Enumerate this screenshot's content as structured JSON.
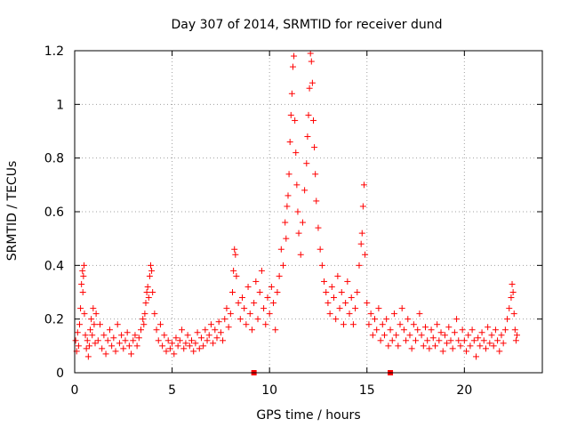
{
  "chart_data": {
    "type": "scatter",
    "title": "Day 307 of 2014, SRMTID for receiver dund",
    "xlabel": "GPS time / hours",
    "ylabel": "SRMTID / TECUs",
    "xlim": [
      0,
      24
    ],
    "ylim": [
      0,
      1.2
    ],
    "xticks": [
      0,
      5,
      10,
      15,
      20
    ],
    "xtick_labels": [
      "0",
      "5",
      "10",
      "15",
      "20"
    ],
    "yticks": [
      0,
      0.2,
      0.4,
      0.6,
      0.8,
      1,
      1.2
    ],
    "ytick_labels": [
      "0",
      "0.2",
      "0.4",
      "0.6",
      "0.8",
      "1",
      "1.2"
    ],
    "grid": true,
    "marker": "+",
    "series_color": "#ff0000",
    "series": [
      {
        "name": "SRMTID",
        "points": [
          [
            0.05,
            0.12
          ],
          [
            0.1,
            0.08
          ],
          [
            0.15,
            0.15
          ],
          [
            0.2,
            0.1
          ],
          [
            0.25,
            0.18
          ],
          [
            0.3,
            0.24
          ],
          [
            0.35,
            0.33
          ],
          [
            0.4,
            0.38
          ],
          [
            0.42,
            0.3
          ],
          [
            0.45,
            0.36
          ],
          [
            0.48,
            0.4
          ],
          [
            0.5,
            0.22
          ],
          [
            0.55,
            0.14
          ],
          [
            0.6,
            0.09
          ],
          [
            0.65,
            0.12
          ],
          [
            0.7,
            0.06
          ],
          [
            0.75,
            0.1
          ],
          [
            0.8,
            0.16
          ],
          [
            0.85,
            0.2
          ],
          [
            0.9,
            0.14
          ],
          [
            0.95,
            0.24
          ],
          [
            1.0,
            0.18
          ],
          [
            1.05,
            0.11
          ],
          [
            1.1,
            0.22
          ],
          [
            1.2,
            0.12
          ],
          [
            1.3,
            0.18
          ],
          [
            1.4,
            0.09
          ],
          [
            1.5,
            0.14
          ],
          [
            1.6,
            0.07
          ],
          [
            1.7,
            0.12
          ],
          [
            1.8,
            0.16
          ],
          [
            1.9,
            0.1
          ],
          [
            2.0,
            0.13
          ],
          [
            2.1,
            0.08
          ],
          [
            2.2,
            0.18
          ],
          [
            2.3,
            0.11
          ],
          [
            2.4,
            0.14
          ],
          [
            2.5,
            0.09
          ],
          [
            2.6,
            0.12
          ],
          [
            2.7,
            0.15
          ],
          [
            2.8,
            0.1
          ],
          [
            2.9,
            0.07
          ],
          [
            3.0,
            0.12
          ],
          [
            3.1,
            0.14
          ],
          [
            3.2,
            0.1
          ],
          [
            3.3,
            0.13
          ],
          [
            3.4,
            0.16
          ],
          [
            3.5,
            0.2
          ],
          [
            3.55,
            0.18
          ],
          [
            3.6,
            0.22
          ],
          [
            3.65,
            0.26
          ],
          [
            3.7,
            0.3
          ],
          [
            3.75,
            0.32
          ],
          [
            3.8,
            0.28
          ],
          [
            3.85,
            0.36
          ],
          [
            3.9,
            0.4
          ],
          [
            3.95,
            0.38
          ],
          [
            4.0,
            0.3
          ],
          [
            4.1,
            0.22
          ],
          [
            4.2,
            0.16
          ],
          [
            4.3,
            0.12
          ],
          [
            4.4,
            0.18
          ],
          [
            4.5,
            0.1
          ],
          [
            4.6,
            0.14
          ],
          [
            4.7,
            0.08
          ],
          [
            4.8,
            0.12
          ],
          [
            4.9,
            0.09
          ],
          [
            5.0,
            0.11
          ],
          [
            5.1,
            0.07
          ],
          [
            5.2,
            0.13
          ],
          [
            5.3,
            0.1
          ],
          [
            5.4,
            0.12
          ],
          [
            5.5,
            0.16
          ],
          [
            5.6,
            0.09
          ],
          [
            5.7,
            0.11
          ],
          [
            5.8,
            0.14
          ],
          [
            5.9,
            0.1
          ],
          [
            6.0,
            0.12
          ],
          [
            6.1,
            0.08
          ],
          [
            6.2,
            0.11
          ],
          [
            6.3,
            0.15
          ],
          [
            6.4,
            0.09
          ],
          [
            6.5,
            0.13
          ],
          [
            6.6,
            0.1
          ],
          [
            6.7,
            0.16
          ],
          [
            6.8,
            0.12
          ],
          [
            6.9,
            0.14
          ],
          [
            7.0,
            0.18
          ],
          [
            7.1,
            0.11
          ],
          [
            7.2,
            0.16
          ],
          [
            7.3,
            0.13
          ],
          [
            7.4,
            0.19
          ],
          [
            7.5,
            0.15
          ],
          [
            7.6,
            0.12
          ],
          [
            7.7,
            0.2
          ],
          [
            7.8,
            0.24
          ],
          [
            7.9,
            0.17
          ],
          [
            8.0,
            0.22
          ],
          [
            8.1,
            0.3
          ],
          [
            8.15,
            0.38
          ],
          [
            8.2,
            0.46
          ],
          [
            8.25,
            0.44
          ],
          [
            8.3,
            0.36
          ],
          [
            8.4,
            0.26
          ],
          [
            8.5,
            0.2
          ],
          [
            8.6,
            0.28
          ],
          [
            8.7,
            0.24
          ],
          [
            8.8,
            0.18
          ],
          [
            8.9,
            0.32
          ],
          [
            9.0,
            0.22
          ],
          [
            9.1,
            0.16
          ],
          [
            9.2,
            0.26
          ],
          [
            9.3,
            0.34
          ],
          [
            9.4,
            0.2
          ],
          [
            9.5,
            0.3
          ],
          [
            9.6,
            0.38
          ],
          [
            9.7,
            0.24
          ],
          [
            9.8,
            0.18
          ],
          [
            9.9,
            0.28
          ],
          [
            10.0,
            0.22
          ],
          [
            10.1,
            0.32
          ],
          [
            10.2,
            0.26
          ],
          [
            10.3,
            0.16
          ],
          [
            10.4,
            0.3
          ],
          [
            10.5,
            0.36
          ],
          [
            10.6,
            0.46
          ],
          [
            10.7,
            0.4
          ],
          [
            10.8,
            0.56
          ],
          [
            10.85,
            0.5
          ],
          [
            10.9,
            0.62
          ],
          [
            10.95,
            0.66
          ],
          [
            11.0,
            0.74
          ],
          [
            11.05,
            0.86
          ],
          [
            11.1,
            0.96
          ],
          [
            11.15,
            1.04
          ],
          [
            11.2,
            1.14
          ],
          [
            11.25,
            1.18
          ],
          [
            11.3,
            0.94
          ],
          [
            11.35,
            0.82
          ],
          [
            11.4,
            0.7
          ],
          [
            11.45,
            0.6
          ],
          [
            11.5,
            0.52
          ],
          [
            11.6,
            0.44
          ],
          [
            11.7,
            0.56
          ],
          [
            11.8,
            0.68
          ],
          [
            11.9,
            0.78
          ],
          [
            11.95,
            0.88
          ],
          [
            12.0,
            0.96
          ],
          [
            12.05,
            1.06
          ],
          [
            12.1,
            1.19
          ],
          [
            12.15,
            1.16
          ],
          [
            12.2,
            1.08
          ],
          [
            12.25,
            0.94
          ],
          [
            12.3,
            0.84
          ],
          [
            12.35,
            0.74
          ],
          [
            12.4,
            0.64
          ],
          [
            12.5,
            0.54
          ],
          [
            12.6,
            0.46
          ],
          [
            12.7,
            0.4
          ],
          [
            12.8,
            0.34
          ],
          [
            12.9,
            0.3
          ],
          [
            13.0,
            0.26
          ],
          [
            13.1,
            0.22
          ],
          [
            13.2,
            0.32
          ],
          [
            13.3,
            0.28
          ],
          [
            13.4,
            0.2
          ],
          [
            13.5,
            0.36
          ],
          [
            13.6,
            0.24
          ],
          [
            13.7,
            0.3
          ],
          [
            13.8,
            0.18
          ],
          [
            13.9,
            0.26
          ],
          [
            14.0,
            0.34
          ],
          [
            14.1,
            0.22
          ],
          [
            14.2,
            0.28
          ],
          [
            14.3,
            0.18
          ],
          [
            14.4,
            0.24
          ],
          [
            14.5,
            0.3
          ],
          [
            14.6,
            0.4
          ],
          [
            14.7,
            0.48
          ],
          [
            14.75,
            0.52
          ],
          [
            14.8,
            0.62
          ],
          [
            14.85,
            0.7
          ],
          [
            14.9,
            0.44
          ],
          [
            15.0,
            0.26
          ],
          [
            15.1,
            0.18
          ],
          [
            15.2,
            0.22
          ],
          [
            15.3,
            0.14
          ],
          [
            15.4,
            0.2
          ],
          [
            15.5,
            0.16
          ],
          [
            15.6,
            0.24
          ],
          [
            15.7,
            0.12
          ],
          [
            15.8,
            0.18
          ],
          [
            15.9,
            0.14
          ],
          [
            16.0,
            0.2
          ],
          [
            16.1,
            0.1
          ],
          [
            16.2,
            0.16
          ],
          [
            16.3,
            0.12
          ],
          [
            16.4,
            0.22
          ],
          [
            16.5,
            0.14
          ],
          [
            16.6,
            0.1
          ],
          [
            16.7,
            0.18
          ],
          [
            16.8,
            0.24
          ],
          [
            16.9,
            0.16
          ],
          [
            17.0,
            0.12
          ],
          [
            17.1,
            0.2
          ],
          [
            17.2,
            0.14
          ],
          [
            17.3,
            0.09
          ],
          [
            17.4,
            0.18
          ],
          [
            17.5,
            0.12
          ],
          [
            17.6,
            0.16
          ],
          [
            17.7,
            0.22
          ],
          [
            17.8,
            0.14
          ],
          [
            17.9,
            0.1
          ],
          [
            18.0,
            0.17
          ],
          [
            18.1,
            0.12
          ],
          [
            18.2,
            0.09
          ],
          [
            18.3,
            0.16
          ],
          [
            18.4,
            0.13
          ],
          [
            18.5,
            0.1
          ],
          [
            18.6,
            0.18
          ],
          [
            18.7,
            0.12
          ],
          [
            18.8,
            0.15
          ],
          [
            18.9,
            0.08
          ],
          [
            19.0,
            0.14
          ],
          [
            19.1,
            0.11
          ],
          [
            19.2,
            0.17
          ],
          [
            19.3,
            0.12
          ],
          [
            19.4,
            0.09
          ],
          [
            19.5,
            0.15
          ],
          [
            19.6,
            0.2
          ],
          [
            19.7,
            0.12
          ],
          [
            19.8,
            0.1
          ],
          [
            19.9,
            0.16
          ],
          [
            20.0,
            0.12
          ],
          [
            20.1,
            0.08
          ],
          [
            20.2,
            0.14
          ],
          [
            20.3,
            0.1
          ],
          [
            20.4,
            0.16
          ],
          [
            20.5,
            0.12
          ],
          [
            20.6,
            0.06
          ],
          [
            20.7,
            0.13
          ],
          [
            20.8,
            0.1
          ],
          [
            20.9,
            0.15
          ],
          [
            21.0,
            0.12
          ],
          [
            21.1,
            0.09
          ],
          [
            21.2,
            0.17
          ],
          [
            21.3,
            0.11
          ],
          [
            21.4,
            0.14
          ],
          [
            21.5,
            0.1
          ],
          [
            21.6,
            0.16
          ],
          [
            21.7,
            0.12
          ],
          [
            21.8,
            0.08
          ],
          [
            21.9,
            0.14
          ],
          [
            22.0,
            0.11
          ],
          [
            22.1,
            0.16
          ],
          [
            22.2,
            0.2
          ],
          [
            22.3,
            0.24
          ],
          [
            22.4,
            0.28
          ],
          [
            22.45,
            0.33
          ],
          [
            22.5,
            0.3
          ],
          [
            22.55,
            0.22
          ],
          [
            22.6,
            0.16
          ],
          [
            22.65,
            0.12
          ],
          [
            22.7,
            0.14
          ]
        ]
      }
    ],
    "axis_markers": [
      {
        "x": 9.2,
        "y": 0,
        "shape": "square"
      },
      {
        "x": 16.2,
        "y": 0,
        "shape": "square"
      }
    ]
  }
}
